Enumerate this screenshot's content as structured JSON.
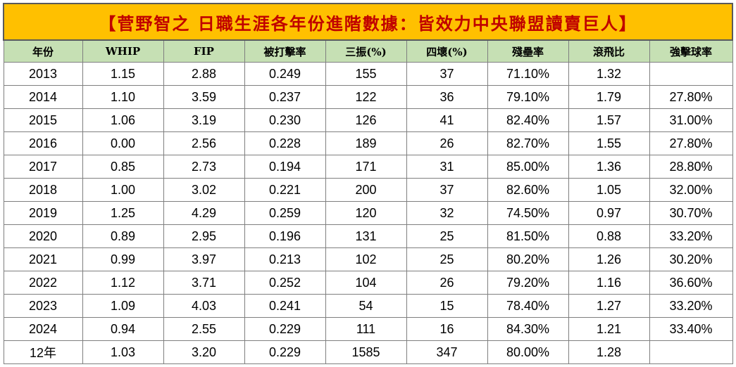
{
  "title": "【菅野智之 日職生涯各年份進階數據：皆效力中央聯盟讀賣巨人】",
  "colors": {
    "title_background": "#ffc000",
    "title_text": "#c00000",
    "header_background": "#c6e0b4",
    "grid_lines": "#7f7f7f"
  },
  "columns": [
    "年份",
    "WHIP",
    "FIP",
    "被打擊率",
    "三振(%)",
    "四壞(%)",
    "殘壘率",
    "滾飛比",
    "強擊球率"
  ],
  "rows": [
    [
      "2013",
      "1.15",
      "2.88",
      "0.249",
      "155",
      "37",
      "71.10%",
      "1.32",
      ""
    ],
    [
      "2014",
      "1.10",
      "3.59",
      "0.237",
      "122",
      "36",
      "79.10%",
      "1.79",
      "27.80%"
    ],
    [
      "2015",
      "1.06",
      "3.19",
      "0.230",
      "126",
      "41",
      "82.40%",
      "1.57",
      "31.00%"
    ],
    [
      "2016",
      "0.00",
      "2.56",
      "0.228",
      "189",
      "26",
      "82.70%",
      "1.55",
      "27.80%"
    ],
    [
      "2017",
      "0.85",
      "2.73",
      "0.194",
      "171",
      "31",
      "85.00%",
      "1.36",
      "28.80%"
    ],
    [
      "2018",
      "1.00",
      "3.02",
      "0.221",
      "200",
      "37",
      "82.60%",
      "1.05",
      "32.00%"
    ],
    [
      "2019",
      "1.25",
      "4.29",
      "0.259",
      "120",
      "32",
      "74.50%",
      "0.97",
      "30.70%"
    ],
    [
      "2020",
      "0.89",
      "2.95",
      "0.196",
      "131",
      "25",
      "81.50%",
      "0.88",
      "33.20%"
    ],
    [
      "2021",
      "0.99",
      "3.97",
      "0.213",
      "102",
      "25",
      "80.20%",
      "1.26",
      "30.20%"
    ],
    [
      "2022",
      "1.12",
      "3.71",
      "0.252",
      "104",
      "26",
      "79.20%",
      "1.16",
      "36.60%"
    ],
    [
      "2023",
      "1.09",
      "4.03",
      "0.241",
      "54",
      "15",
      "78.40%",
      "1.27",
      "33.20%"
    ],
    [
      "2024",
      "0.94",
      "2.55",
      "0.229",
      "111",
      "16",
      "84.30%",
      "1.21",
      "33.40%"
    ],
    [
      "12年",
      "1.03",
      "3.20",
      "0.229",
      "1585",
      "347",
      "80.00%",
      "1.28",
      ""
    ]
  ]
}
